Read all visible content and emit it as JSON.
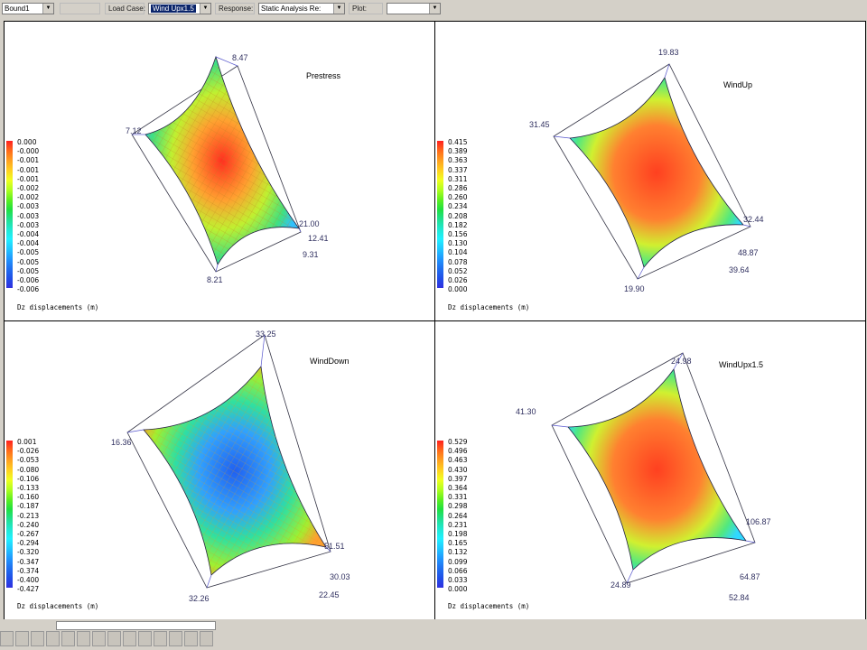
{
  "toolbar": {
    "bound": "Bound1",
    "load_case_label": "Load Case:",
    "load_case": "Wind Upx1.5",
    "response_label": "Response:",
    "response": "Static Analysis Re:",
    "plot_label": "Plot:",
    "plot": ""
  },
  "panels": [
    {
      "title": "Prestress",
      "caption": "Dz displacements (m)",
      "legend": [
        "0.000",
        "-0.000",
        "-0.001",
        "-0.001",
        "-0.001",
        "-0.002",
        "-0.002",
        "-0.003",
        "-0.003",
        "-0.003",
        "-0.004",
        "-0.004",
        "-0.005",
        "-0.005",
        "-0.005",
        "-0.006",
        "-0.006"
      ],
      "corner_labels": [
        "8.47",
        "7.12",
        "8.21",
        "21.00",
        "12.41",
        "9.31"
      ]
    },
    {
      "title": "WindUp",
      "caption": "Dz displacements (m)",
      "legend": [
        "0.415",
        "0.389",
        "0.363",
        "0.337",
        "0.311",
        "0.286",
        "0.260",
        "0.234",
        "0.208",
        "0.182",
        "0.156",
        "0.130",
        "0.104",
        "0.078",
        "0.052",
        "0.026",
        "0.000"
      ],
      "corner_labels": [
        "19.83",
        "31.45",
        "19.90",
        "32.44",
        "48.87",
        "39.64"
      ]
    },
    {
      "title": "WindDown",
      "caption": "Dz displacements (m)",
      "legend": [
        "0.001",
        "-0.026",
        "-0.053",
        "-0.080",
        "-0.106",
        "-0.133",
        "-0.160",
        "-0.187",
        "-0.213",
        "-0.240",
        "-0.267",
        "-0.294",
        "-0.320",
        "-0.347",
        "-0.374",
        "-0.400",
        "-0.427"
      ],
      "corner_labels": [
        "33.25",
        "16.36",
        "32.26",
        "51.51",
        "30.03",
        "22.45"
      ]
    },
    {
      "title": "WindUpx1.5",
      "caption": "Dz displacements (m)",
      "legend": [
        "0.529",
        "0.496",
        "0.463",
        "0.430",
        "0.397",
        "0.364",
        "0.331",
        "0.298",
        "0.264",
        "0.231",
        "0.198",
        "0.165",
        "0.132",
        "0.099",
        "0.066",
        "0.033",
        "0.000"
      ],
      "corner_labels": [
        "24.98",
        "41.30",
        "24.89",
        "106.87",
        "64.87",
        "52.84"
      ]
    }
  ],
  "colors": {
    "scale": [
      "#ff2020",
      "#ff6a1a",
      "#ffa020",
      "#ffd020",
      "#f0ff20",
      "#b0ff20",
      "#60f020",
      "#20e040",
      "#20e090",
      "#20e8d0",
      "#20f0ff",
      "#20c8ff",
      "#2098ff",
      "#2070f0",
      "#2050e8",
      "#3030e0"
    ]
  }
}
